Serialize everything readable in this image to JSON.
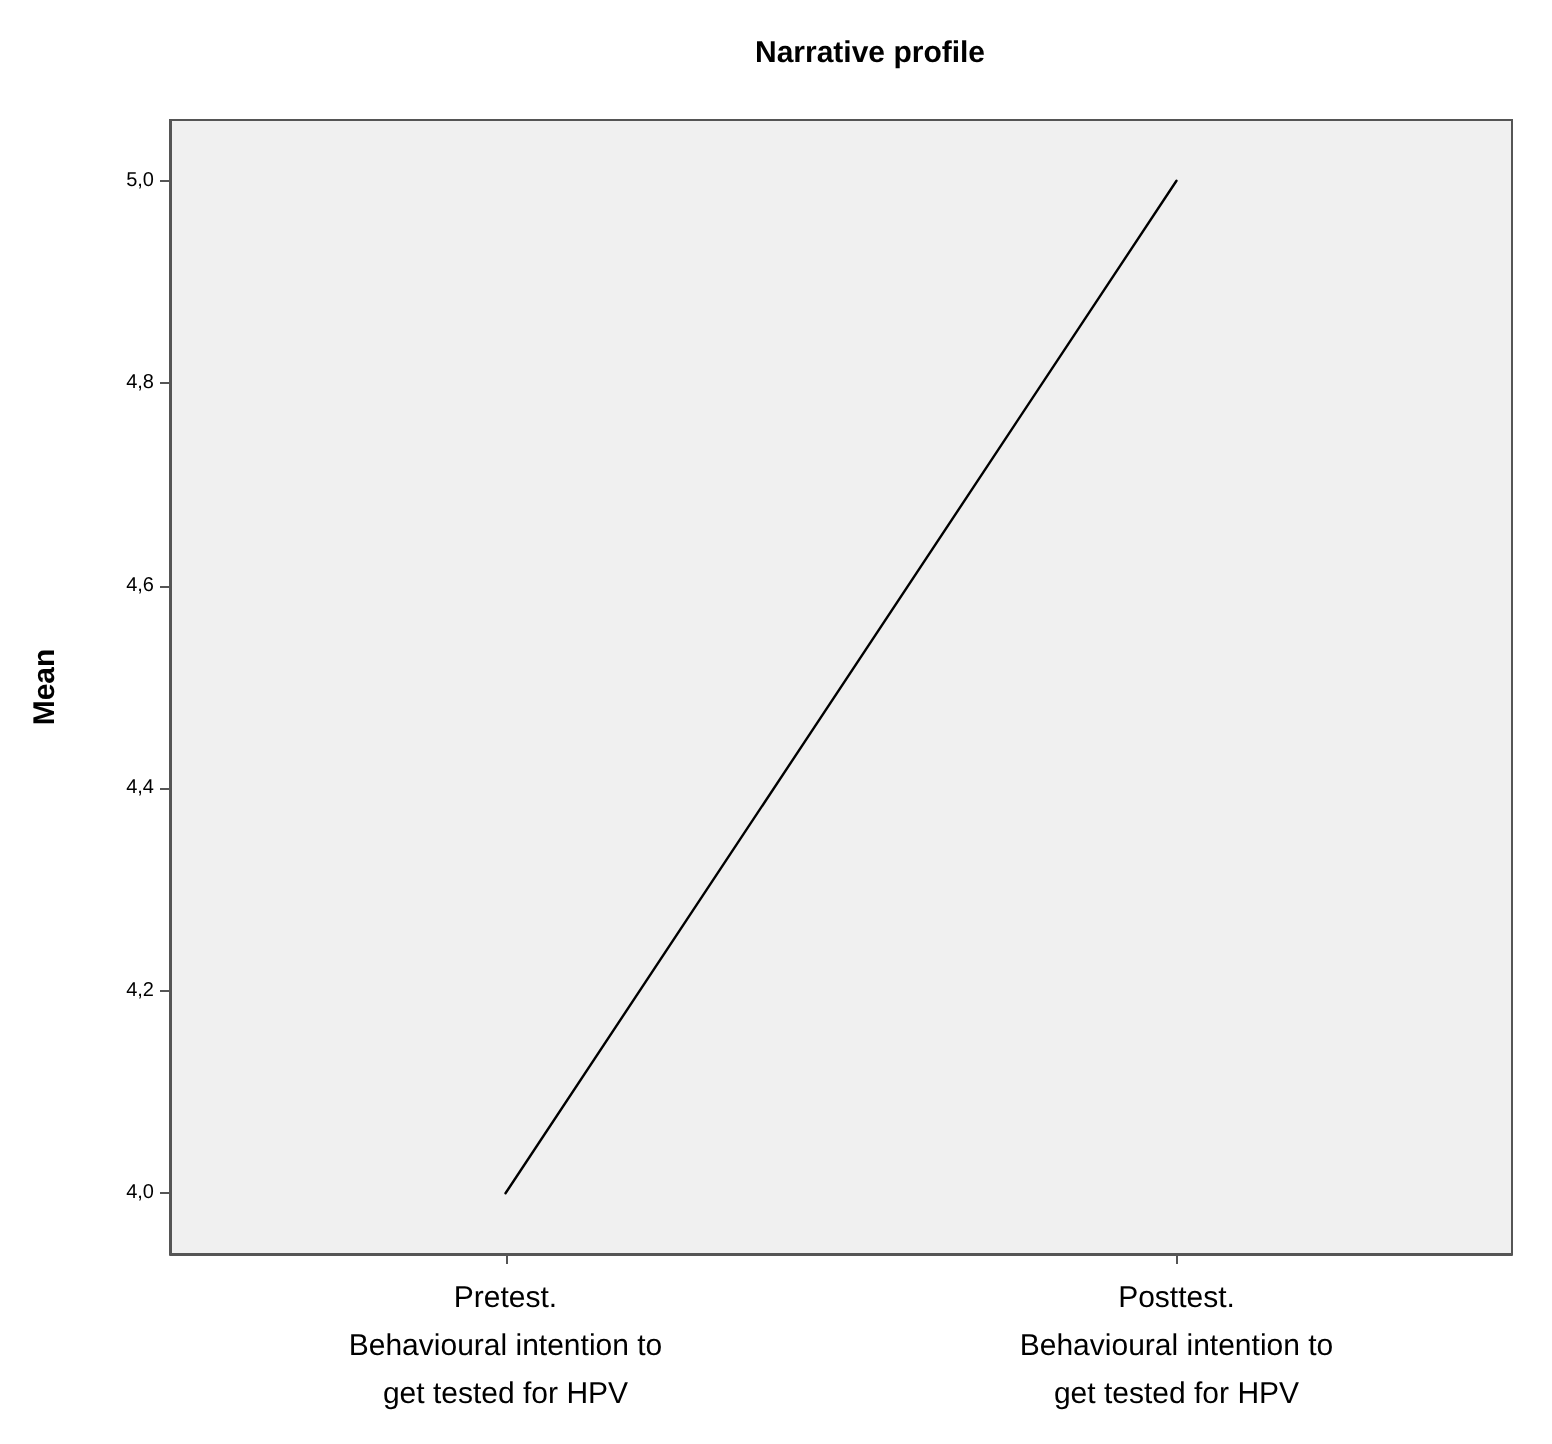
{
  "chart_data": {
    "type": "line",
    "title": "Narrative profile",
    "ylabel": "Mean",
    "categories": [
      "Pretest.\nBehavioural intention to\nget tested for HPV",
      "Posttest.\nBehavioural intention to\nget tested for HPV"
    ],
    "series": [
      {
        "color": "#000000",
        "values": [
          4.0,
          5.0
        ]
      }
    ],
    "ylim": [
      3.94,
      5.06
    ],
    "yticks": [
      {
        "value": 4.0,
        "label": "4,0"
      },
      {
        "value": 4.2,
        "label": "4,2"
      },
      {
        "value": 4.4,
        "label": "4,4"
      },
      {
        "value": 4.6,
        "label": "4,6"
      },
      {
        "value": 4.8,
        "label": "4,8"
      },
      {
        "value": 5.0,
        "label": "5,0"
      }
    ],
    "marker": "none",
    "line_style": "solid"
  }
}
